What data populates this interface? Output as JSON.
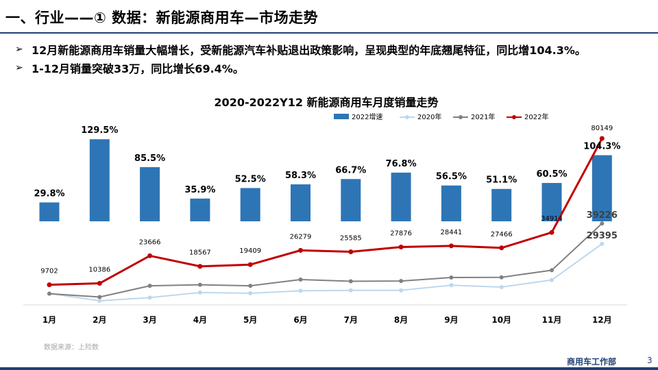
{
  "slide": {
    "title": "一、行业——① 数据：新能源商用车—市场走势",
    "bullets": [
      "12月新能源商用车销量大幅增长，受新能源汽车补贴退出政策影响，呈现典型的年底翘尾特征，同比增104.3%。",
      "1-12月销量突破33万，同比增长69.4%。"
    ],
    "source_note": "数据来源：上险数",
    "footer_dept": "商用车工作部",
    "page_number": "3"
  },
  "chart_data": {
    "type": "bar+line",
    "title": "2020-2022Y12 新能源商用车月度销量走势",
    "categories": [
      "1月",
      "2月",
      "3月",
      "4月",
      "5月",
      "6月",
      "7月",
      "8月",
      "9月",
      "10月",
      "11月",
      "12月"
    ],
    "bar_series": {
      "name": "2022增速",
      "color": "#2e75b6",
      "values": [
        29.8,
        129.5,
        85.5,
        35.9,
        52.5,
        58.3,
        66.7,
        76.8,
        56.5,
        51.1,
        60.5,
        104.3
      ],
      "labels": [
        "29.8%",
        "129.5%",
        "85.5%",
        "35.9%",
        "52.5%",
        "58.3%",
        "66.7%",
        "76.8%",
        "56.5%",
        "51.1%",
        "60.5%",
        "104.3%"
      ]
    },
    "line_series": [
      {
        "name": "2020年",
        "color": "#bdd7ee",
        "values": [
          5500,
          2000,
          3500,
          6000,
          5600,
          6800,
          7000,
          7000,
          9500,
          8600,
          12000,
          29395
        ],
        "point_labels": [
          null,
          null,
          null,
          null,
          null,
          null,
          null,
          null,
          null,
          null,
          null,
          "29395"
        ]
      },
      {
        "name": "2021年",
        "color": "#808080",
        "values": [
          5400,
          3800,
          9200,
          9700,
          9200,
          12200,
          11400,
          11500,
          13200,
          13300,
          16700,
          39226
        ],
        "point_labels": [
          null,
          null,
          null,
          null,
          null,
          null,
          null,
          null,
          null,
          null,
          null,
          "39226"
        ]
      },
      {
        "name": "2022年",
        "color": "#c00000",
        "values": [
          9702,
          10386,
          23666,
          18567,
          19409,
          26279,
          25585,
          27876,
          28441,
          27466,
          34914,
          80149
        ],
        "point_labels": [
          "9702",
          "10386",
          "23666",
          "18567",
          "19409",
          "26279",
          "25585",
          "27876",
          "28441",
          "27466",
          "34914",
          "80149"
        ]
      }
    ],
    "legend_position": "top-right",
    "grid": false
  }
}
